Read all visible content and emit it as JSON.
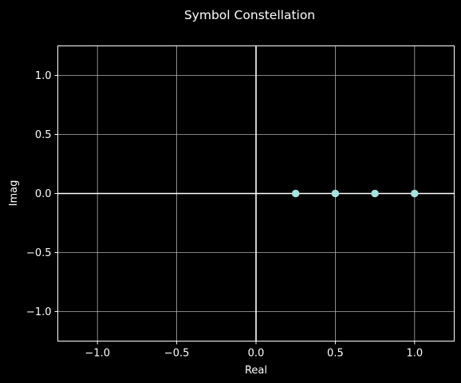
{
  "chart_data": {
    "type": "scatter",
    "title": "Symbol Constellation",
    "xlabel": "Real",
    "ylabel": "Imag",
    "xlim": [
      -1.25,
      1.25
    ],
    "ylim": [
      -1.25,
      1.25
    ],
    "xticks": [
      -1.0,
      -0.5,
      0.0,
      0.5,
      1.0
    ],
    "xtick_labels": [
      "−1.0",
      "−0.5",
      "0.0",
      "0.5",
      "1.0"
    ],
    "yticks": [
      -1.0,
      -0.5,
      0.0,
      0.5,
      1.0
    ],
    "ytick_labels": [
      "−1.0",
      "−0.5",
      "0.0",
      "0.5",
      "1.0"
    ],
    "grid": true,
    "reference_lines": {
      "x": 0,
      "y": 0
    },
    "series": [
      {
        "x": [
          0.25,
          0.5,
          0.75,
          1.0
        ],
        "y": [
          0.0,
          0.0,
          0.0,
          0.0
        ]
      }
    ],
    "colors": {
      "background": "#000000",
      "foreground": "#ffffff",
      "marker": "#a6e1dc"
    }
  }
}
